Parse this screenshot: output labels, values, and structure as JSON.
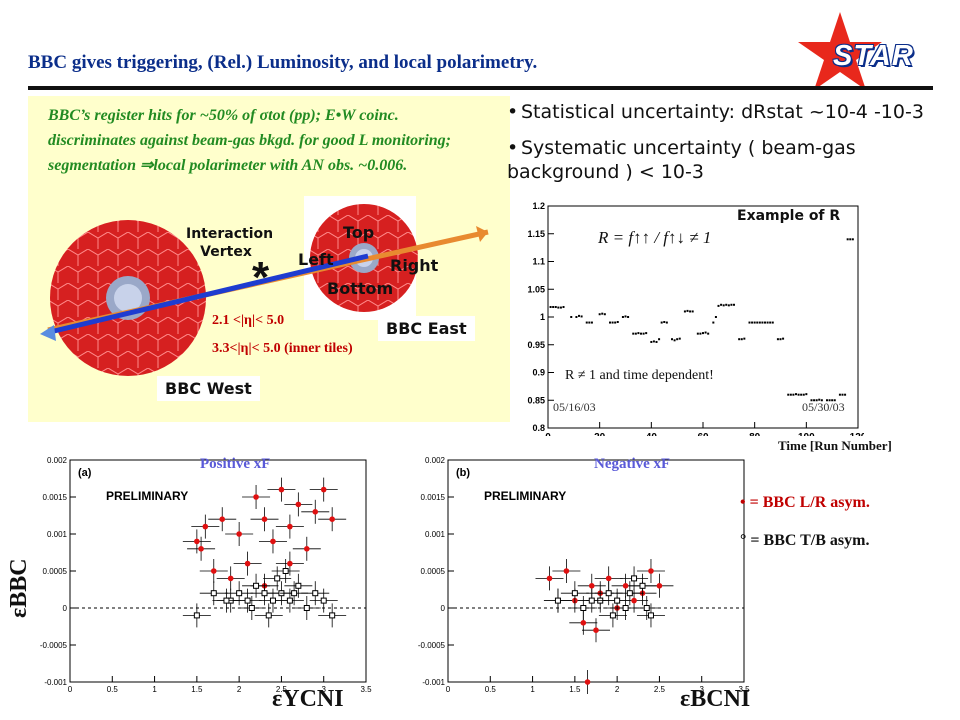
{
  "header": {
    "title": "BBC gives triggering, (Rel.) Luminosity, and local polarimetry.",
    "logo_text": "STAR"
  },
  "panel": {
    "description": "BBC’s register hits for ~50% of σtot (pp); E•W coinc. discriminates against beam-gas bkgd. for good L monitoring; segmentation ⇒local polarimeter with AN obs. ~0.006.",
    "interaction_vertex": "Interaction Vertex",
    "top": "Top",
    "left": "Left",
    "right": "Right",
    "bottom": "Bottom",
    "eta_range_outer": "2.1 <|η|< 5.0",
    "eta_range_inner": "3.3<|η|< 5.0 (inner tiles)",
    "bbc_east": "BBC East",
    "bbc_west": "BBC West"
  },
  "bullets": [
    {
      "text": "Statistical uncertainty: dRstat ~10-4 -10-3"
    },
    {
      "text": "Systematic uncertainty ( beam-gas background ) < 10-3"
    }
  ],
  "ratio_plot": {
    "title": "Example of R",
    "formula": "R = f↑↑ / f↑↓ ≠ 1",
    "annotation": "R ≠ 1 and time dependent!",
    "date_start": "05/16/03",
    "date_end": "05/30/03",
    "xlabel": "Time [Run Number]"
  },
  "asym_plots": {
    "pos_title": "Positive xF",
    "neg_title": "Negative xF",
    "preliminary": "PRELIMINARY",
    "panel_a": "(a)",
    "panel_b": "(b)",
    "ylabel": "εBBC",
    "xlabel_a": "εYCNI",
    "xlabel_b": "εBCNI",
    "legend_lr": "• = BBC L/R asym.",
    "legend_tb": "° = BBC T/B asym."
  },
  "colors": {
    "title": "#0b2e8a",
    "panel_bg": "#ffffcc",
    "green_text": "#228b22",
    "red": "#c00000",
    "star_red": "#e8281c"
  },
  "chart_data": [
    {
      "type": "scatter",
      "title": "Example of R",
      "xlabel": "Time [Run Number]",
      "ylabel": "",
      "xlim": [
        0,
        120
      ],
      "ylim": [
        0.8,
        1.2
      ],
      "xticks": [
        0,
        20,
        40,
        60,
        80,
        100,
        120
      ],
      "yticks": [
        0.8,
        0.85,
        0.9,
        0.95,
        1,
        1.05,
        1.1,
        1.15,
        1.2
      ],
      "points": [
        [
          1,
          1.018
        ],
        [
          2,
          1.018
        ],
        [
          3,
          1.018
        ],
        [
          4,
          1.017
        ],
        [
          5,
          1.017
        ],
        [
          6,
          1.018
        ],
        [
          9,
          1.0
        ],
        [
          11,
          1.0
        ],
        [
          12,
          1.002
        ],
        [
          13,
          1.001
        ],
        [
          15,
          0.99
        ],
        [
          16,
          0.99
        ],
        [
          17,
          0.99
        ],
        [
          20,
          1.005
        ],
        [
          21,
          1.006
        ],
        [
          22,
          1.005
        ],
        [
          24,
          0.99
        ],
        [
          25,
          0.99
        ],
        [
          26,
          0.99
        ],
        [
          27,
          0.991
        ],
        [
          29,
          1.0
        ],
        [
          30,
          1.001
        ],
        [
          31,
          1.0
        ],
        [
          33,
          0.97
        ],
        [
          34,
          0.97
        ],
        [
          35,
          0.971
        ],
        [
          36,
          0.97
        ],
        [
          37,
          0.97
        ],
        [
          38,
          0.971
        ],
        [
          40,
          0.955
        ],
        [
          41,
          0.956
        ],
        [
          42,
          0.955
        ],
        [
          43,
          0.96
        ],
        [
          44,
          0.99
        ],
        [
          45,
          0.991
        ],
        [
          46,
          0.99
        ],
        [
          48,
          0.96
        ],
        [
          49,
          0.958
        ],
        [
          50,
          0.96
        ],
        [
          51,
          0.961
        ],
        [
          53,
          1.01
        ],
        [
          54,
          1.011
        ],
        [
          55,
          1.01
        ],
        [
          56,
          1.01
        ],
        [
          58,
          0.97
        ],
        [
          59,
          0.97
        ],
        [
          60,
          0.971
        ],
        [
          61,
          0.972
        ],
        [
          62,
          0.97
        ],
        [
          64,
          0.99
        ],
        [
          65,
          1.0
        ],
        [
          66,
          1.02
        ],
        [
          67,
          1.022
        ],
        [
          68,
          1.021
        ],
        [
          69,
          1.022
        ],
        [
          70,
          1.021
        ],
        [
          71,
          1.022
        ],
        [
          72,
          1.022
        ],
        [
          74,
          0.96
        ],
        [
          75,
          0.96
        ],
        [
          76,
          0.961
        ],
        [
          78,
          0.99
        ],
        [
          79,
          0.99
        ],
        [
          80,
          0.99
        ],
        [
          81,
          0.99
        ],
        [
          82,
          0.99
        ],
        [
          83,
          0.99
        ],
        [
          84,
          0.99
        ],
        [
          85,
          0.99
        ],
        [
          86,
          0.99
        ],
        [
          87,
          0.99
        ],
        [
          89,
          0.96
        ],
        [
          90,
          0.96
        ],
        [
          91,
          0.961
        ],
        [
          93,
          0.86
        ],
        [
          94,
          0.86
        ],
        [
          95,
          0.86
        ],
        [
          96,
          0.861
        ],
        [
          97,
          0.86
        ],
        [
          98,
          0.86
        ],
        [
          99,
          0.86
        ],
        [
          100,
          0.861
        ],
        [
          102,
          0.85
        ],
        [
          103,
          0.85
        ],
        [
          104,
          0.85
        ],
        [
          105,
          0.851
        ],
        [
          106,
          0.85
        ],
        [
          108,
          0.85
        ],
        [
          109,
          0.85
        ],
        [
          110,
          0.85
        ],
        [
          111,
          0.85
        ],
        [
          113,
          0.86
        ],
        [
          114,
          0.86
        ],
        [
          115,
          0.86
        ],
        [
          116,
          1.14
        ],
        [
          117,
          1.14
        ],
        [
          118,
          1.14
        ]
      ]
    },
    {
      "type": "scatter",
      "title": "Positive xF",
      "xlabel": "εYCNI",
      "ylabel": "εBBC",
      "xlim": [
        0,
        3.5
      ],
      "ylim": [
        -0.001,
        0.002
      ],
      "xticks": [
        0,
        0.5,
        1,
        1.5,
        2,
        2.5,
        3,
        3.5
      ],
      "yticks": [
        -0.001,
        -0.0005,
        0,
        0.0005,
        0.001,
        0.0015,
        0.002
      ],
      "series": [
        {
          "name": "BBC L/R asym.",
          "filled": true,
          "points": [
            [
              1.5,
              0.0009
            ],
            [
              1.6,
              0.0011
            ],
            [
              1.8,
              0.0012
            ],
            [
              2.0,
              0.001
            ],
            [
              2.2,
              0.0015
            ],
            [
              2.3,
              0.0012
            ],
            [
              2.5,
              0.0016
            ],
            [
              2.7,
              0.0014
            ],
            [
              2.9,
              0.0013
            ],
            [
              3.0,
              0.0016
            ],
            [
              1.55,
              0.0008
            ],
            [
              2.4,
              0.0009
            ],
            [
              2.6,
              0.0011
            ],
            [
              2.1,
              0.0006
            ],
            [
              2.8,
              0.0008
            ],
            [
              1.9,
              0.0004
            ],
            [
              2.3,
              0.0003
            ],
            [
              1.7,
              0.0005
            ],
            [
              2.6,
              0.0006
            ],
            [
              3.1,
              0.0012
            ]
          ]
        },
        {
          "name": "BBC T/B asym.",
          "filled": false,
          "points": [
            [
              1.5,
              -0.0001
            ],
            [
              1.7,
              0.0002
            ],
            [
              1.9,
              0.0001
            ],
            [
              2.0,
              0.0002
            ],
            [
              2.1,
              0.0001
            ],
            [
              2.2,
              0.0003
            ],
            [
              2.3,
              0.0002
            ],
            [
              2.4,
              0.0001
            ],
            [
              2.5,
              0.0002
            ],
            [
              2.6,
              0.0001
            ],
            [
              2.7,
              0.0003
            ],
            [
              2.8,
              0.0
            ],
            [
              2.9,
              0.0002
            ],
            [
              3.0,
              0.0001
            ],
            [
              3.1,
              -0.0001
            ],
            [
              2.45,
              0.0004
            ],
            [
              2.15,
              0.0
            ],
            [
              2.55,
              0.0005
            ],
            [
              1.85,
              0.0001
            ],
            [
              2.35,
              -0.0001
            ],
            [
              2.65,
              0.0002
            ]
          ]
        }
      ]
    },
    {
      "type": "scatter",
      "title": "Negative xF",
      "xlabel": "εBCNI",
      "ylabel": "",
      "xlim": [
        0,
        3.5
      ],
      "ylim": [
        -0.001,
        0.002
      ],
      "xticks": [
        0,
        0.5,
        1,
        1.5,
        2,
        2.5,
        3,
        3.5
      ],
      "yticks": [
        -0.001,
        -0.0005,
        0,
        0.0005,
        0.001,
        0.0015,
        0.002
      ],
      "series": [
        {
          "name": "BBC L/R asym.",
          "filled": true,
          "points": [
            [
              1.2,
              0.0004
            ],
            [
              1.4,
              0.0005
            ],
            [
              1.5,
              0.0001
            ],
            [
              1.7,
              0.0003
            ],
            [
              1.8,
              0.0002
            ],
            [
              1.9,
              0.0004
            ],
            [
              2.0,
              0.0
            ],
            [
              2.1,
              0.0003
            ],
            [
              2.2,
              0.0001
            ],
            [
              2.3,
              0.0002
            ],
            [
              2.4,
              0.0005
            ],
            [
              1.6,
              -0.0002
            ],
            [
              1.75,
              -0.0003
            ],
            [
              2.5,
              0.0003
            ],
            [
              1.3,
              0.0001
            ],
            [
              1.65,
              -0.001
            ]
          ]
        },
        {
          "name": "BBC T/B asym.",
          "filled": false,
          "points": [
            [
              1.3,
              0.0001
            ],
            [
              1.5,
              0.0002
            ],
            [
              1.6,
              0.0
            ],
            [
              1.8,
              0.0001
            ],
            [
              1.9,
              0.0002
            ],
            [
              2.0,
              0.0001
            ],
            [
              2.1,
              0.0
            ],
            [
              2.2,
              0.0004
            ],
            [
              2.3,
              0.0003
            ],
            [
              2.35,
              0.0
            ],
            [
              2.4,
              -0.0001
            ],
            [
              1.7,
              0.0001
            ],
            [
              1.95,
              -0.0001
            ],
            [
              2.15,
              0.0002
            ]
          ]
        }
      ]
    }
  ]
}
